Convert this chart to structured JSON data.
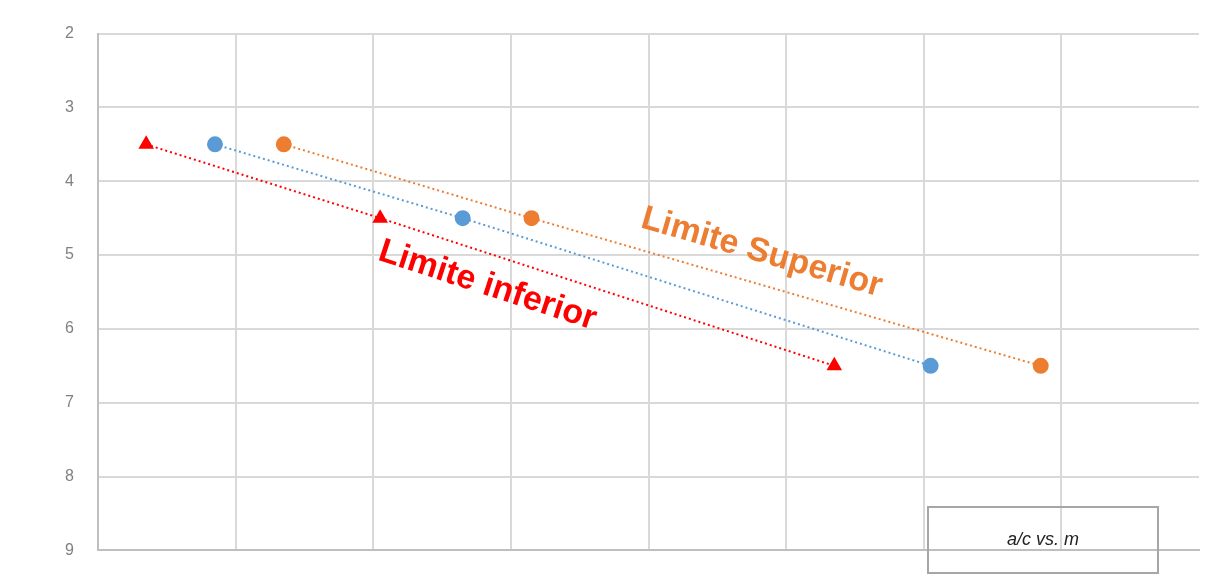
{
  "chart_data": {
    "type": "line",
    "title": "a/c vs. m",
    "categories": [
      null,
      null,
      null,
      null,
      null,
      null,
      null,
      null,
      null,
      null,
      null,
      null,
      null,
      null,
      null,
      null,
      null,
      null,
      null,
      null,
      null,
      null,
      null,
      null,
      null,
      null,
      null,
      null,
      null,
      null,
      null,
      null,
      null,
      null,
      null,
      null,
      null,
      null,
      null,
      null,
      null,
      null,
      null,
      null,
      null,
      null,
      null,
      null,
      null,
      null,
      null,
      null,
      null,
      null,
      null,
      null,
      null,
      null,
      null,
      null,
      null,
      null,
      null,
      null,
      null,
      null,
      null,
      null,
      null,
      null,
      null,
      null,
      null,
      null,
      null,
      null,
      null,
      null,
      null,
      null
    ],
    "series": [
      {
        "name": "Limite inferior",
        "color": "#ff0000",
        "marker": "triangle",
        "values": [
          null,
          null,
          null,
          3.5,
          null,
          null,
          null,
          null,
          null,
          null,
          null,
          null,
          null,
          null,
          null,
          null,
          null,
          null,
          null,
          null,
          4.5,
          null,
          null,
          null,
          null,
          null,
          null,
          null,
          null,
          null,
          null,
          null,
          null,
          null,
          null,
          null,
          null,
          null,
          null,
          null,
          null,
          null,
          null,
          null,
          null,
          null,
          null,
          null,
          null,
          null,
          null,
          null,
          null,
          6.5,
          null,
          null,
          null,
          null,
          null,
          null,
          null,
          null,
          null,
          null,
          null,
          null,
          null,
          null,
          null,
          null,
          null,
          null,
          null,
          null,
          null,
          null,
          null,
          null,
          null,
          null
        ]
      },
      {
        "color": "#5b9bd5",
        "marker": "circle",
        "values": [
          null,
          null,
          null,
          null,
          null,
          null,
          null,
          null,
          3.5,
          null,
          null,
          null,
          null,
          null,
          null,
          null,
          null,
          null,
          null,
          null,
          null,
          null,
          null,
          null,
          null,
          null,
          4.5,
          null,
          null,
          null,
          null,
          null,
          null,
          null,
          null,
          null,
          null,
          null,
          null,
          null,
          null,
          null,
          null,
          null,
          null,
          null,
          null,
          null,
          null,
          null,
          null,
          null,
          null,
          null,
          null,
          null,
          null,
          null,
          null,
          null,
          6.5,
          null,
          null,
          null,
          null,
          null,
          null,
          null,
          null,
          null,
          null,
          null,
          null,
          null,
          null,
          null,
          null,
          null,
          null,
          null
        ]
      },
      {
        "name": "Limite Superior",
        "color": "#ed7d31",
        "marker": "circle",
        "values": [
          null,
          null,
          null,
          null,
          null,
          null,
          null,
          null,
          null,
          null,
          null,
          null,
          null,
          3.5,
          null,
          null,
          null,
          null,
          null,
          null,
          null,
          null,
          null,
          null,
          null,
          null,
          null,
          null,
          null,
          null,
          null,
          4.5,
          null,
          null,
          null,
          null,
          null,
          null,
          null,
          null,
          null,
          null,
          null,
          null,
          null,
          null,
          null,
          null,
          null,
          null,
          null,
          null,
          null,
          null,
          null,
          null,
          null,
          null,
          null,
          null,
          null,
          null,
          null,
          null,
          null,
          null,
          null,
          null,
          6.5,
          null,
          null,
          null,
          null,
          null,
          null,
          null,
          null,
          null,
          null,
          null
        ]
      }
    ],
    "line_style": "dotted",
    "grid": true,
    "ylim": [
      9,
      2
    ],
    "yticks": [
      2,
      3,
      4,
      5,
      6,
      7,
      8,
      9
    ]
  }
}
